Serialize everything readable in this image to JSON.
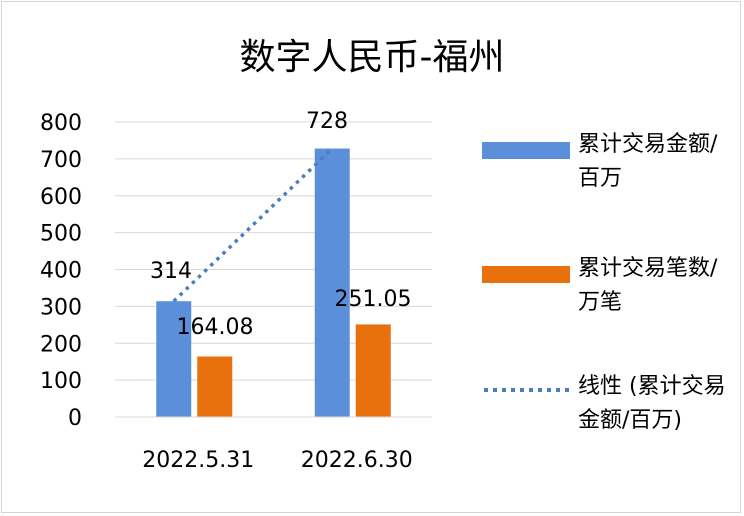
{
  "chart_data": {
    "type": "bar",
    "title": "数字人民币-福州",
    "categories": [
      "2022.5.31",
      "2022.6.30"
    ],
    "series": [
      {
        "name": "累计交易金额/百万",
        "values": [
          314,
          728
        ],
        "color": "#5b8fd9",
        "labels": [
          "314",
          "728"
        ]
      },
      {
        "name": "累计交易笔数/万笔",
        "values": [
          164.08,
          251.05
        ],
        "color": "#e8700d",
        "labels": [
          "164.08",
          "251.05"
        ]
      }
    ],
    "trendline": {
      "name": "线性 (累计交易金额/百万)",
      "style": "dotted",
      "color": "#4a7fbf"
    },
    "ylim": [
      0,
      800
    ],
    "yticks": [
      "0",
      "100",
      "200",
      "300",
      "400",
      "500",
      "600",
      "700",
      "800"
    ],
    "grid": true,
    "legend": "right"
  }
}
